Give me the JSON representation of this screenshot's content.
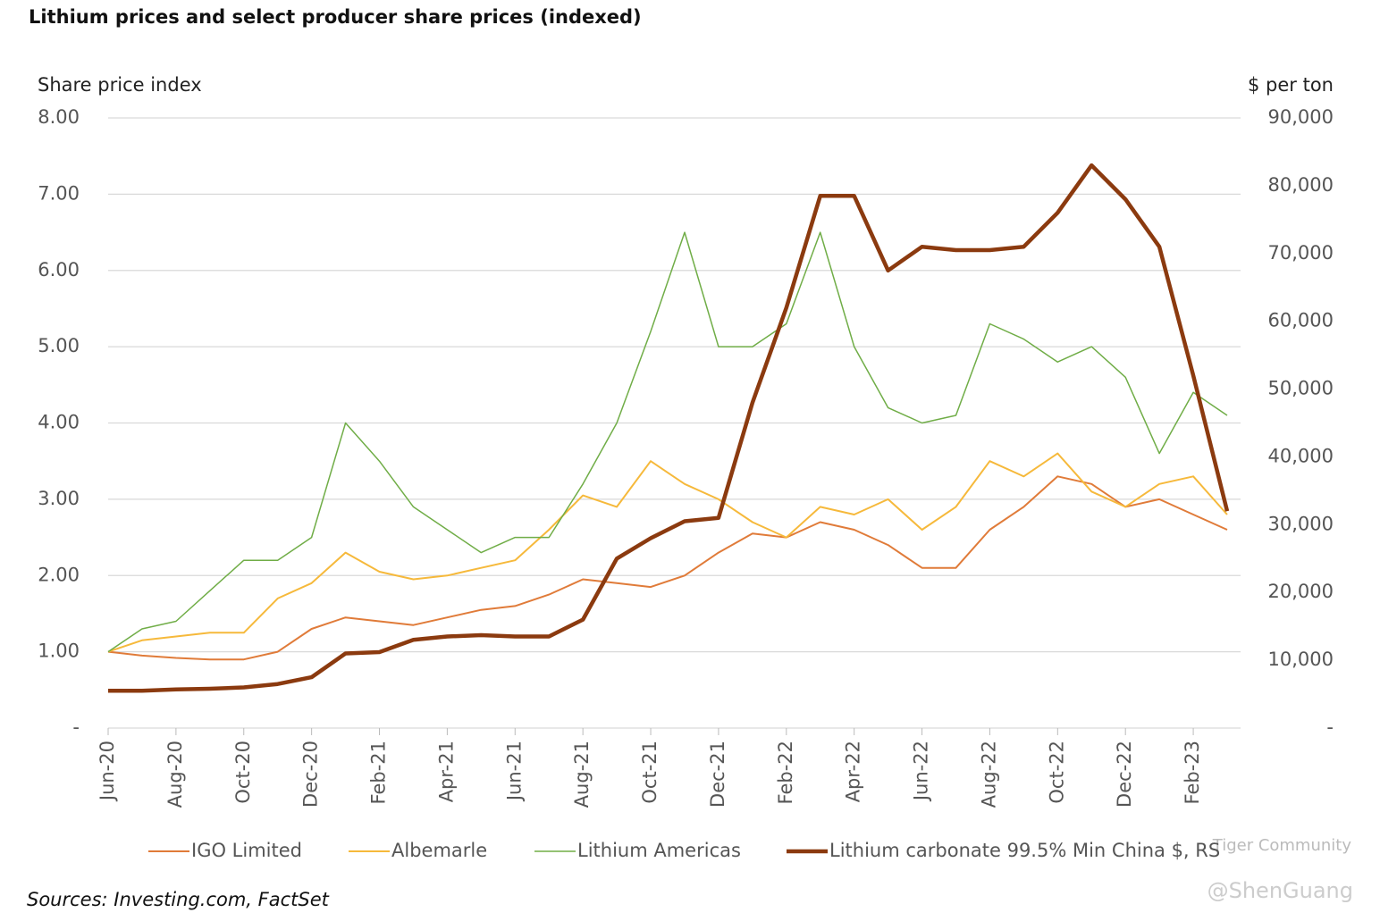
{
  "chart_data": {
    "type": "line",
    "title": "Lithium prices and select producer share prices (indexed)",
    "y_label": "Share price index",
    "y2_label": "$ per ton",
    "source": "Sources: Investing.com, FactSet",
    "watermark": [
      "Tiger Community",
      "@ShenGuang"
    ],
    "x": [
      "Jun-20",
      "Jul-20",
      "Aug-20",
      "Sep-20",
      "Oct-20",
      "Nov-20",
      "Dec-20",
      "Jan-21",
      "Feb-21",
      "Mar-21",
      "Apr-21",
      "May-21",
      "Jun-21",
      "Jul-21",
      "Aug-21",
      "Sep-21",
      "Oct-21",
      "Nov-21",
      "Dec-21",
      "Jan-22",
      "Feb-22",
      "Mar-22",
      "Apr-22",
      "May-22",
      "Jun-22",
      "Jul-22",
      "Aug-22",
      "Sep-22",
      "Oct-22",
      "Nov-22",
      "Dec-22",
      "Jan-23",
      "Feb-23",
      "Mar-23"
    ],
    "xticks": [
      "Jun-20",
      "Aug-20",
      "Oct-20",
      "Dec-20",
      "Feb-21",
      "Apr-21",
      "Jun-21",
      "Aug-21",
      "Oct-21",
      "Dec-21",
      "Feb-22",
      "Apr-22",
      "Jun-22",
      "Aug-22",
      "Oct-22",
      "Dec-22",
      "Feb-23"
    ],
    "ylim": [
      0,
      8
    ],
    "yticks": [
      {
        "value": 0,
        "label": "-"
      },
      {
        "value": 1,
        "label": "1.00"
      },
      {
        "value": 2,
        "label": "2.00"
      },
      {
        "value": 3,
        "label": "3.00"
      },
      {
        "value": 4,
        "label": "4.00"
      },
      {
        "value": 5,
        "label": "5.00"
      },
      {
        "value": 6,
        "label": "6.00"
      },
      {
        "value": 7,
        "label": "7.00"
      },
      {
        "value": 8,
        "label": "8.00"
      }
    ],
    "y2lim": [
      0,
      90000
    ],
    "y2ticks": [
      {
        "value": 0,
        "label": "-"
      },
      {
        "value": 10000,
        "label": "10,000"
      },
      {
        "value": 20000,
        "label": "20,000"
      },
      {
        "value": 30000,
        "label": "30,000"
      },
      {
        "value": 40000,
        "label": "40,000"
      },
      {
        "value": 50000,
        "label": "50,000"
      },
      {
        "value": 60000,
        "label": "60,000"
      },
      {
        "value": 70000,
        "label": "70,000"
      },
      {
        "value": 80000,
        "label": "80,000"
      },
      {
        "value": 90000,
        "label": "90,000"
      }
    ],
    "grid": true,
    "legend": "bottom",
    "series": [
      {
        "name": "IGO Limited",
        "color": "#e07b39",
        "width": 2,
        "values": [
          1.0,
          0.95,
          0.92,
          0.9,
          0.9,
          1.0,
          1.3,
          1.45,
          1.4,
          1.35,
          1.45,
          1.55,
          1.6,
          1.75,
          1.95,
          1.9,
          1.85,
          2.0,
          2.3,
          2.55,
          2.5,
          2.7,
          2.6,
          2.4,
          2.1,
          2.1,
          2.6,
          2.9,
          3.3,
          3.2,
          2.9,
          3.0,
          2.8,
          2.6
        ]
      },
      {
        "name": "Albemarle",
        "color": "#f6b93b",
        "width": 2,
        "values": [
          1.0,
          1.15,
          1.2,
          1.25,
          1.25,
          1.7,
          1.9,
          2.3,
          2.05,
          1.95,
          2.0,
          2.1,
          2.2,
          2.6,
          3.05,
          2.9,
          3.5,
          3.2,
          3.0,
          2.7,
          2.5,
          2.9,
          2.8,
          3.0,
          2.6,
          2.9,
          3.5,
          3.3,
          3.6,
          3.1,
          2.9,
          3.2,
          3.3,
          2.8
        ]
      },
      {
        "name": "Lithium Americas",
        "color": "#70ad47",
        "width": 1.5,
        "values": [
          1.0,
          1.3,
          1.4,
          1.8,
          2.2,
          2.2,
          2.5,
          4.0,
          3.5,
          2.9,
          2.6,
          2.3,
          2.5,
          2.5,
          3.2,
          4.0,
          5.2,
          6.5,
          5.0,
          5.0,
          5.3,
          6.5,
          5.0,
          4.2,
          4.0,
          4.1,
          5.3,
          5.1,
          4.8,
          5.0,
          4.6,
          3.6,
          4.4,
          4.1
        ]
      },
      {
        "name": "Lithium carbonate 99.5% Min China $, RS",
        "color": "#8b3a0f",
        "width": 4.5,
        "axis": "y2",
        "values": [
          5500,
          5500,
          5700,
          5800,
          6000,
          6500,
          7500,
          11000,
          11200,
          13000,
          13500,
          13700,
          13500,
          13500,
          16000,
          25000,
          28000,
          30500,
          31000,
          48000,
          62000,
          78500,
          78500,
          67500,
          71000,
          70500,
          70500,
          71000,
          76000,
          83000,
          78000,
          71000,
          52000,
          32000
        ]
      }
    ]
  }
}
